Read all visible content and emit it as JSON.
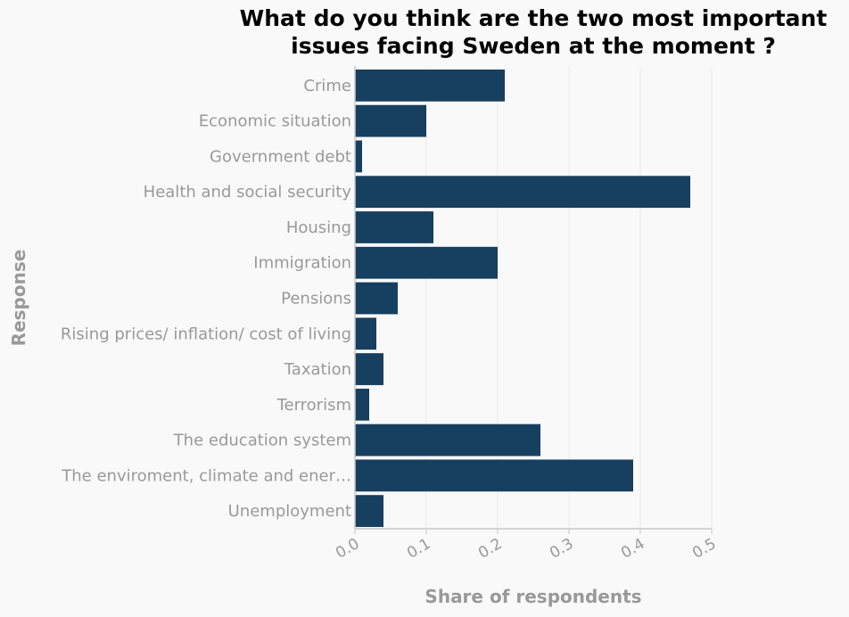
{
  "chart_data": {
    "type": "bar",
    "orientation": "horizontal",
    "title_lines": [
      "What do you think are the two most important",
      "issues facing Sweden at the moment ?"
    ],
    "xlabel": "Share of respondents",
    "ylabel": "Response",
    "xlim": [
      0,
      0.5
    ],
    "x_ticks": [
      "0.0",
      "0.1",
      "0.2",
      "0.3",
      "0.4",
      "0.5"
    ],
    "grid": true,
    "bar_color": "#173f5f",
    "categories": [
      "Crime",
      "Economic situation",
      "Government debt",
      "Health and social security",
      "Housing",
      "Immigration",
      "Pensions",
      "Rising prices/ inflation/ cost of living",
      "Taxation",
      "Terrorism",
      "The education system",
      "The enviroment, climate and ener…",
      "Unemployment"
    ],
    "values": [
      0.21,
      0.1,
      0.01,
      0.47,
      0.11,
      0.2,
      0.06,
      0.03,
      0.04,
      0.02,
      0.26,
      0.39,
      0.04
    ]
  }
}
